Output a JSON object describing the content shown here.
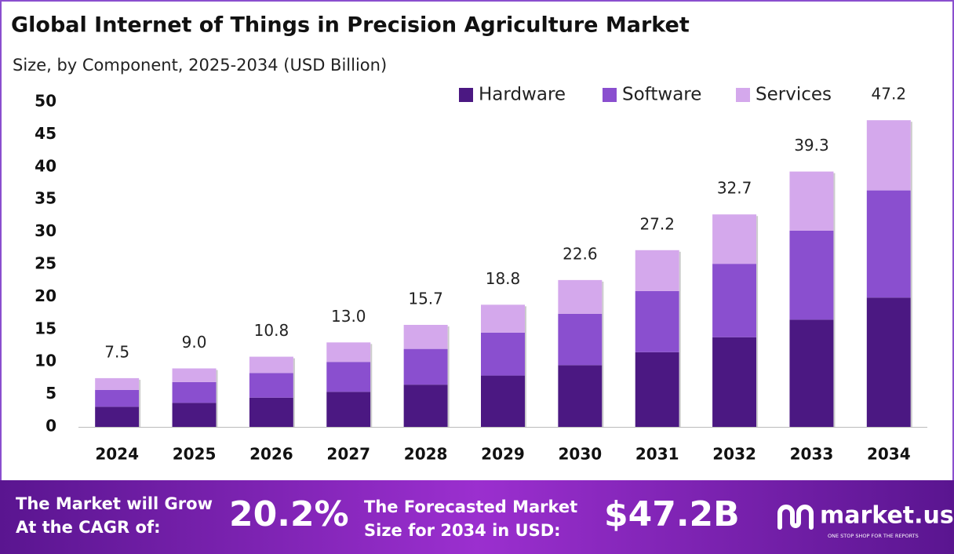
{
  "chart_data": {
    "type": "stacked_bar",
    "title": "Global Internet of Things in Precision Agriculture Market",
    "subtitle": "Size, by Component, 2025-2034 (USD Billion)",
    "categories": [
      "2024",
      "2025",
      "2026",
      "2027",
      "2028",
      "2029",
      "2030",
      "2031",
      "2032",
      "2033",
      "2034"
    ],
    "series": [
      {
        "name": "Hardware",
        "color": "#4b1882",
        "values": [
          3.1,
          3.7,
          4.5,
          5.4,
          6.5,
          7.9,
          9.5,
          11.5,
          13.8,
          16.5,
          19.9
        ]
      },
      {
        "name": "Software",
        "color": "#8a4fcf",
        "values": [
          2.6,
          3.2,
          3.8,
          4.6,
          5.5,
          6.6,
          7.9,
          9.4,
          11.3,
          13.7,
          16.5
        ]
      },
      {
        "name": "Services",
        "color": "#d4a8ec",
        "values": [
          1.8,
          2.1,
          2.5,
          3.0,
          3.7,
          4.3,
          5.2,
          6.3,
          7.6,
          9.1,
          10.8
        ]
      }
    ],
    "totals": {
      "values": [
        7.5,
        9.0,
        10.8,
        13.0,
        15.7,
        18.8,
        22.6,
        27.2,
        32.7,
        39.3,
        47.2
      ],
      "value_labels": [
        "7.5",
        "9.0",
        "10.8",
        "13.0",
        "15.7",
        "18.8",
        "22.6",
        "27.2",
        "32.7",
        "39.3",
        "47.2"
      ]
    },
    "ylim": [
      0,
      50
    ],
    "yticks": [
      0,
      5,
      10,
      15,
      20,
      25,
      30,
      35,
      40,
      45,
      50
    ],
    "grid": false,
    "legend": "top-right"
  },
  "footer": {
    "cagr_text": [
      "The Market will Grow",
      "At the CAGR of:"
    ],
    "cagr_value": "20.2%",
    "forecast_text": [
      "The Forecasted Market",
      "Size for 2034 in USD:"
    ],
    "forecast_value": "$47.2B",
    "brand": "market.us",
    "tagline": "ONE STOP SHOP FOR THE REPORTS"
  }
}
